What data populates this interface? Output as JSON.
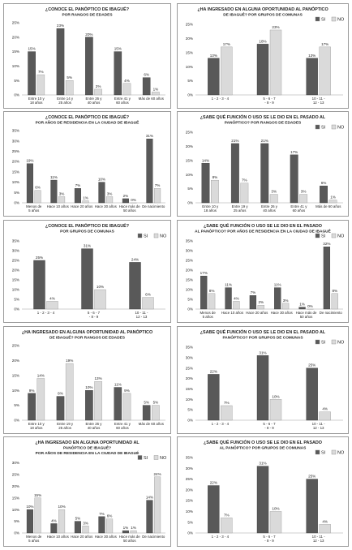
{
  "colors": {
    "si": "#595959",
    "no": "#dadada",
    "axis": "#bfbfbf",
    "text": "#222222",
    "panel_border": "#9a9a9a"
  },
  "chart_data": [
    {
      "type": "bar",
      "title": "¿CONOCE EL PANÓPTICO DE IBAGUÉ?",
      "subtitle": "POR RANGOS DE EDADES",
      "categories": [
        "Entre 10 y 18 años",
        "Entre 14 y 25 años",
        "Entre 26 y 40 años",
        "Entre 41 y 60 años",
        "Más de 60 años"
      ],
      "series": [
        {
          "name": "SI",
          "values": [
            15,
            23,
            20,
            15,
            6
          ],
          "labels": [
            "15%",
            "23%",
            "20%",
            "15%",
            "6%"
          ]
        },
        {
          "name": "NO",
          "values": [
            7,
            5,
            2,
            4,
            1
          ],
          "labels": [
            "7%",
            "5%",
            "2%",
            "4%",
            "1%"
          ]
        }
      ],
      "ylim": [
        0,
        25
      ],
      "yticks": [
        "0%",
        "5%",
        "10%",
        "15%",
        "20%",
        "25%"
      ],
      "legend": "none",
      "grid": false
    },
    {
      "type": "bar",
      "title": "¿HA INGRESADO EN ALGUNA OPORTUNIDAD AL PANÓPTICO",
      "subtitle": "DE IBAGUÉ? POR GRUPOS DE COMUNAS",
      "categories": [
        "1 - 2 - 3 - 4",
        "5 - 6 - 7 - 8 - 9",
        "10 - 11 - 12 - 13"
      ],
      "series": [
        {
          "name": "SI",
          "values": [
            13,
            18,
            13
          ],
          "labels": [
            "13%",
            "18%",
            "13%"
          ]
        },
        {
          "name": "NO",
          "values": [
            17,
            23,
            17
          ],
          "labels": [
            "17%",
            "23%",
            "17%"
          ]
        }
      ],
      "ylim": [
        0,
        25
      ],
      "yticks": [
        "0%",
        "5%",
        "10%",
        "15%",
        "20%",
        "25%"
      ],
      "legend": "top-right",
      "grid": false
    },
    {
      "type": "bar",
      "title": "¿CONOCE EL PANÓPTICO DE IBAGUÉ?",
      "subtitle": "POR AÑOS DE RESIDENCIA EN LA CIUDAD DE IBAGUÉ",
      "categories": [
        "Menos de 5 años",
        "Hace 10 años",
        "Hace 20 años",
        "Hace 30 años",
        "Hace más de 50 años",
        "De nacimiento"
      ],
      "series": [
        {
          "name": "SI",
          "values": [
            19,
            11,
            7,
            10,
            2,
            31
          ],
          "labels": [
            "19%",
            "11%",
            "7%",
            "10%",
            "2%",
            "31%"
          ]
        },
        {
          "name": "NO",
          "values": [
            6,
            3,
            1,
            3,
            0,
            7
          ],
          "labels": [
            "6%",
            "3%",
            "1%",
            "3%",
            "0%",
            "7%"
          ]
        }
      ],
      "ylim": [
        0,
        35
      ],
      "yticks": [
        "0%",
        "5%",
        "10%",
        "15%",
        "20%",
        "25%",
        "30%",
        "35%"
      ],
      "legend": "none",
      "grid": false
    },
    {
      "type": "bar",
      "title": "¿SABE QUÉ FUNCIÓN O USO SE LE DIO EN EL PASADO AL",
      "subtitle": "PANÓPTICO? POR RANGOS DE EDADES",
      "categories": [
        "Entre 10 y 18 años",
        "Entre 19 y 25 años",
        "Entre 26 y 40 años",
        "Entre 41 y 60 años",
        "Más de 60 años"
      ],
      "series": [
        {
          "name": "SI",
          "values": [
            14,
            21,
            21,
            17,
            6
          ],
          "labels": [
            "14%",
            "21%",
            "21%",
            "17%",
            "6%"
          ]
        },
        {
          "name": "NO",
          "values": [
            8,
            7,
            3,
            3,
            1
          ],
          "labels": [
            "8%",
            "7%",
            "3%",
            "3%",
            "1%"
          ]
        }
      ],
      "ylim": [
        0,
        25
      ],
      "yticks": [
        "0%",
        "5%",
        "10%",
        "15%",
        "20%",
        "25%"
      ],
      "legend": "top-right",
      "grid": false
    },
    {
      "type": "bar",
      "title": "¿CONOCE EL PANÓPTICO DE IBAGUÉ?",
      "subtitle": "POR GRUPOS DE COMUNAS",
      "categories": [
        "1 - 2 - 3 - 4",
        "5 - 6 - 7 - 8 - 9",
        "10 - 11 - 12 - 13"
      ],
      "series": [
        {
          "name": "SI",
          "values": [
            25,
            31,
            24
          ],
          "labels": [
            "25%",
            "31%",
            "24%"
          ]
        },
        {
          "name": "NO",
          "values": [
            4,
            10,
            6
          ],
          "labels": [
            "4%",
            "10%",
            "6%"
          ]
        }
      ],
      "ylim": [
        0,
        35
      ],
      "yticks": [
        "0%",
        "5%",
        "10%",
        "15%",
        "20%",
        "25%",
        "30%",
        "35%"
      ],
      "legend": "top-right",
      "grid": false
    },
    {
      "type": "bar",
      "title": "¿SABE QUÉ FUNCIÓN O USO SE LE DIO EN EL PASADO",
      "subtitle": "AL PANÓPTICO? POR AÑOS DE RESIDENCIA EN LA CIUDAD DE IBAGUÉ",
      "categories": [
        "Menos de 5 años",
        "Hace 10 años",
        "Hace 20 años",
        "Hace 30 años",
        "Hace más de 50 años",
        "De nacimiento"
      ],
      "series": [
        {
          "name": "SI",
          "values": [
            17,
            11,
            7,
            11,
            1,
            32
          ],
          "labels": [
            "17%",
            "11%",
            "7%",
            "11%",
            "1%",
            "32%"
          ]
        },
        {
          "name": "NO",
          "values": [
            8,
            4,
            2,
            3,
            0,
            8
          ],
          "labels": [
            "8%",
            "4%",
            "2%",
            "3%",
            "0%",
            "8%"
          ]
        }
      ],
      "ylim": [
        0,
        35
      ],
      "yticks": [
        "0%",
        "5%",
        "10%",
        "15%",
        "20%",
        "25%",
        "30%",
        "35%"
      ],
      "legend": "top-right",
      "grid": false
    },
    {
      "type": "bar",
      "title": "¿HA INGRESADO EN ALGUNA OPORTUNIDAD AL PANÓPTICO",
      "subtitle": "DE IBAGUÉ? POR RANGOS DE EDADES",
      "categories": [
        "Entre 10 y 18 años",
        "Entre 19 y 25 años",
        "Entre 26 y 40 años",
        "Entre 41 y 60 años",
        "Más de 60 años"
      ],
      "series": [
        {
          "name": "SI",
          "values": [
            9,
            8,
            10,
            11,
            5
          ],
          "labels": [
            "9%",
            "8%",
            "10%",
            "11%",
            "5%"
          ]
        },
        {
          "name": "NO",
          "values": [
            14,
            19,
            13,
            9,
            5
          ],
          "labels": [
            "14%",
            "19%",
            "13%",
            "9%",
            "5%"
          ]
        }
      ],
      "ylim": [
        0,
        25
      ],
      "yticks": [
        "0%",
        "5%",
        "10%",
        "15%",
        "20%",
        "25%"
      ],
      "legend": "none",
      "grid": false
    },
    {
      "type": "bar",
      "title": "¿SABE QUÉ FUNCIÓN O USO SE LE DIO EN EL PASADO AL",
      "subtitle": "PANÓPTICO? POR GRUPOS DE COMUNAS",
      "categories": [
        "1 - 2 - 3 - 4",
        "5 - 6 - 7 - 8 - 9",
        "10 - 11 - 12 - 13"
      ],
      "series": [
        {
          "name": "SI",
          "values": [
            22,
            31,
            25
          ],
          "labels": [
            "22%",
            "31%",
            "25%"
          ]
        },
        {
          "name": "NO",
          "values": [
            7,
            10,
            4
          ],
          "labels": [
            "7%",
            "10%",
            "4%"
          ]
        }
      ],
      "ylim": [
        0,
        35
      ],
      "yticks": [
        "0%",
        "5%",
        "10%",
        "15%",
        "20%",
        "25%",
        "30%",
        "35%"
      ],
      "legend": "top-right",
      "grid": false
    },
    {
      "type": "bar",
      "title": "¿HA INGRESADO EN ALGUNA OPORTUNIDAD AL",
      "subtitle": "PANÓPTICO DE IBAGUÉ?",
      "subtitle2": "POR AÑOS DE RESIDENCIA EN LA CIUDAD DE IBAGUÉ",
      "categories": [
        "Menos de 5 años",
        "Hace 10 años",
        "Hace 20 años",
        "Hace 30 años",
        "Hace más de 50 años",
        "De nacimiento"
      ],
      "series": [
        {
          "name": "SI",
          "values": [
            10,
            4,
            5,
            7,
            1,
            14
          ],
          "labels": [
            "10%",
            "4%",
            "5%",
            "7%",
            "1%",
            "14%"
          ]
        },
        {
          "name": "NO",
          "values": [
            15,
            10,
            3,
            6,
            1,
            24
          ],
          "labels": [
            "15%",
            "10%",
            "3%",
            "6%",
            "1%",
            "24%"
          ]
        }
      ],
      "ylim": [
        0,
        30
      ],
      "yticks": [
        "0%",
        "5%",
        "10%",
        "15%",
        "20%",
        "25%",
        "30%"
      ],
      "legend": "top-right",
      "grid": false
    },
    {
      "type": "bar",
      "title": "¿SABE QUÉ FUNCIÓN O USO SE LE DIO EN EL PASADO",
      "subtitle": "AL PANÓPTICO? POR GRUPOS DE COMUNAS",
      "categories": [
        "1 - 2 - 3 - 4",
        "5 - 6 - 7 - 8 - 9",
        "10 - 11 - 12 - 13"
      ],
      "series": [
        {
          "name": "SI",
          "values": [
            22,
            31,
            25
          ],
          "labels": [
            "22%",
            "31%",
            "25%"
          ]
        },
        {
          "name": "NO",
          "values": [
            7,
            10,
            4
          ],
          "labels": [
            "7%",
            "10%",
            "4%"
          ]
        }
      ],
      "ylim": [
        0,
        35
      ],
      "yticks": [
        "0%",
        "5%",
        "10%",
        "15%",
        "20%",
        "25%",
        "30%",
        "35%"
      ],
      "legend": "top-right",
      "grid": false
    }
  ]
}
